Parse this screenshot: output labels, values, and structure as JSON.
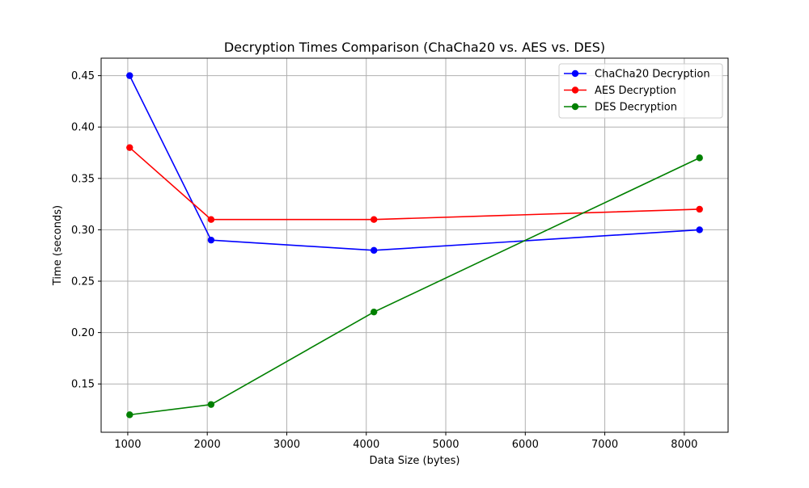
{
  "chart_data": {
    "type": "line",
    "title": "Decryption Times Comparison (ChaCha20 vs. AES vs. DES)",
    "xlabel": "Data Size (bytes)",
    "ylabel": "Time (seconds)",
    "x": [
      1024,
      2048,
      4096,
      8192
    ],
    "xlim": [
      665,
      8551
    ],
    "ylim": [
      0.103,
      0.467
    ],
    "xticks": [
      1000,
      2000,
      3000,
      4000,
      5000,
      6000,
      7000,
      8000
    ],
    "xtick_labels": [
      "1000",
      "2000",
      "3000",
      "4000",
      "5000",
      "6000",
      "7000",
      "8000"
    ],
    "yticks": [
      0.15,
      0.2,
      0.25,
      0.3,
      0.35,
      0.4,
      0.45
    ],
    "ytick_labels": [
      "0.15",
      "0.20",
      "0.25",
      "0.30",
      "0.35",
      "0.40",
      "0.45"
    ],
    "grid": true,
    "legend_position": "top-right",
    "series": [
      {
        "name": "ChaCha20 Decryption",
        "color": "#0000ff",
        "values": [
          0.45,
          0.29,
          0.28,
          0.3
        ]
      },
      {
        "name": "AES Decryption",
        "color": "#ff0000",
        "values": [
          0.38,
          0.31,
          0.31,
          0.32
        ]
      },
      {
        "name": "DES Decryption",
        "color": "#008000",
        "values": [
          0.12,
          0.13,
          0.22,
          0.37
        ]
      }
    ]
  }
}
